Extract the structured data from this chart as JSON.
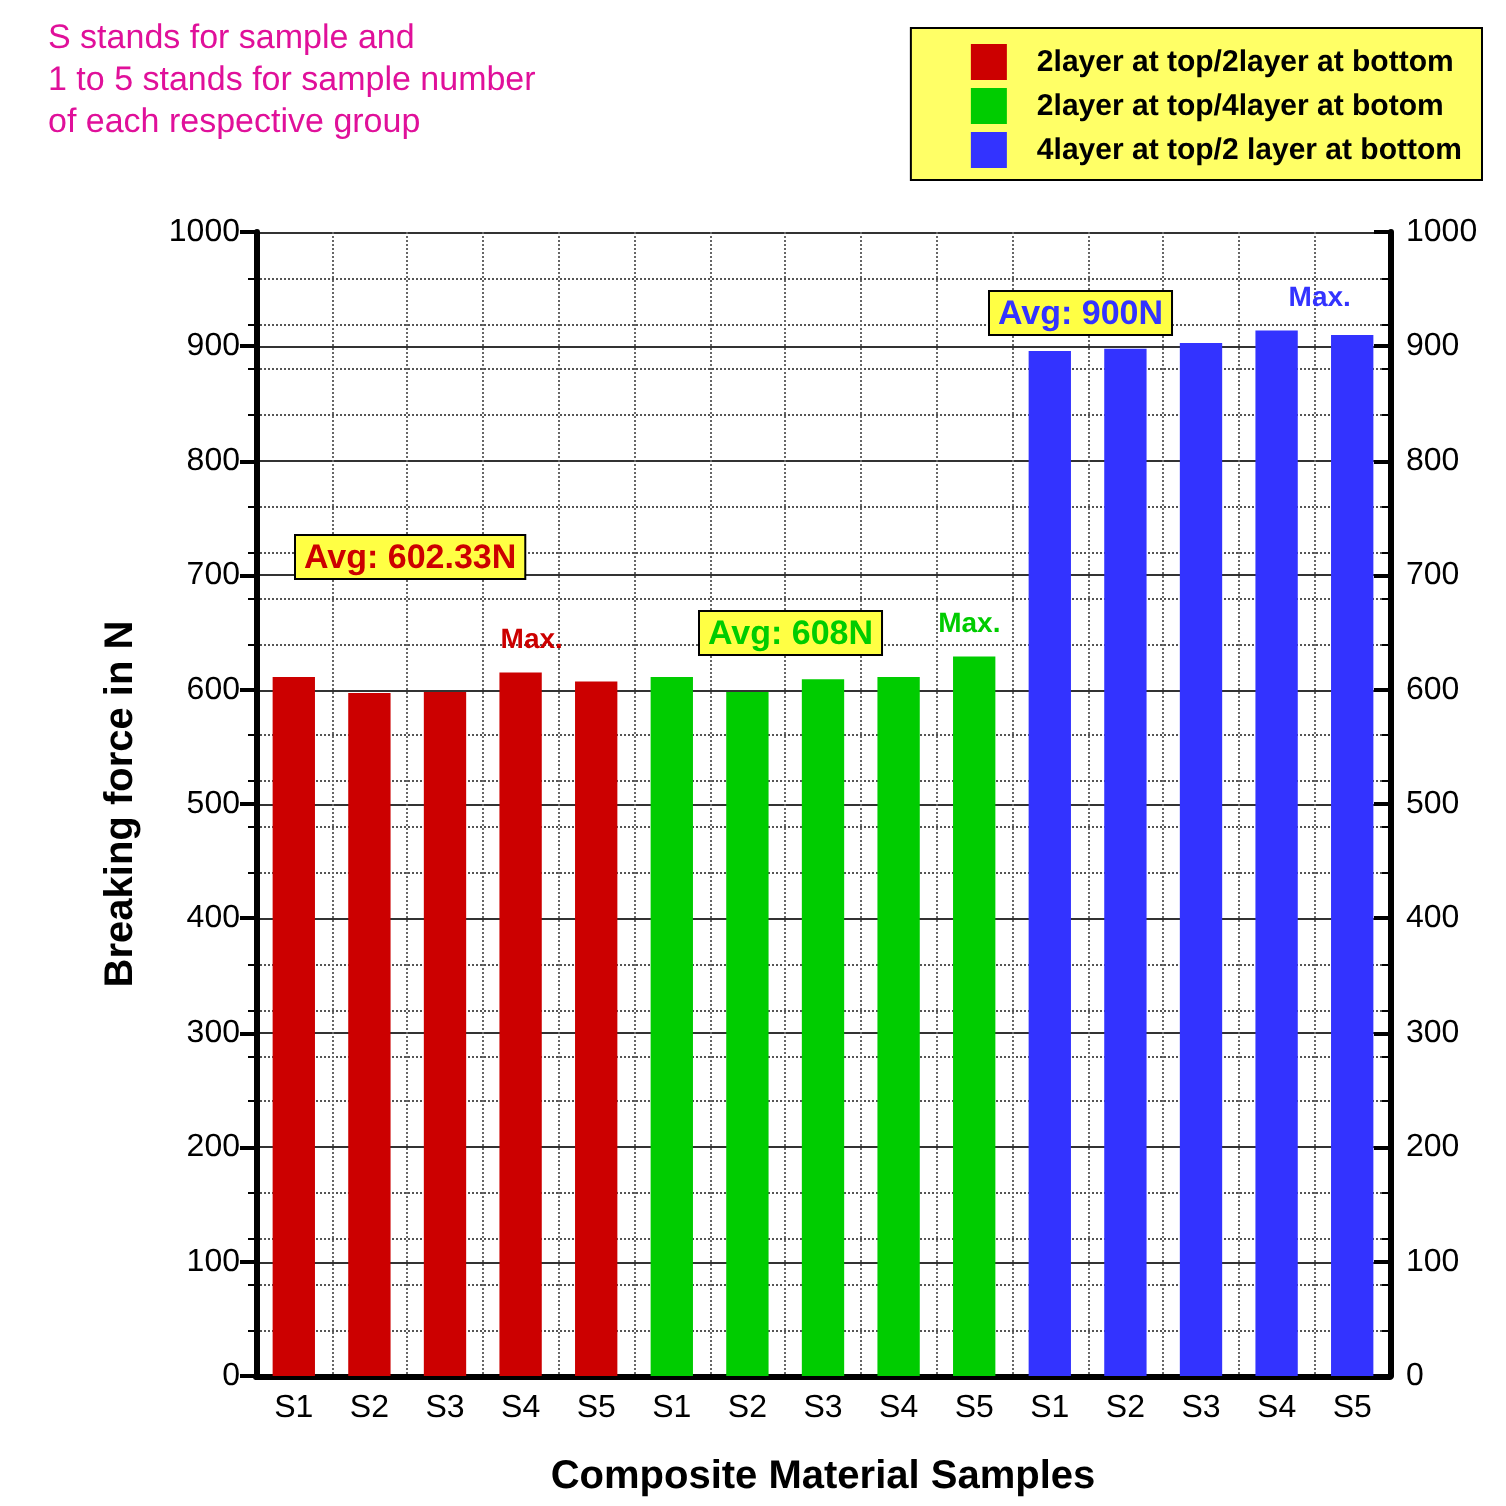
{
  "chart_data": {
    "type": "bar",
    "xlabel": "Composite Material Samples",
    "ylabel": "Breaking force in N",
    "categories": [
      "S1",
      "S2",
      "S3",
      "S4",
      "S5",
      "S1",
      "S2",
      "S3",
      "S4",
      "S5",
      "S1",
      "S2",
      "S3",
      "S4",
      "S5"
    ],
    "series": [
      {
        "name": "2layer at top/2layer at bottom",
        "color": "#cc0000",
        "values": [
          611,
          597,
          598,
          615,
          607,
          null,
          null,
          null,
          null,
          null,
          null,
          null,
          null,
          null,
          null
        ]
      },
      {
        "name": "2layer at top/4layer at botom",
        "color": "#00cc00",
        "values": [
          null,
          null,
          null,
          null,
          null,
          611,
          598,
          609,
          611,
          629,
          null,
          null,
          null,
          null,
          null
        ]
      },
      {
        "name": "4layer at top/2 layer at bottom",
        "color": "#3333ff",
        "values": [
          null,
          null,
          null,
          null,
          null,
          null,
          null,
          null,
          null,
          null,
          896,
          898,
          903,
          914,
          910
        ]
      }
    ],
    "ylim": [
      0,
      1000
    ],
    "yticks": [
      0,
      100,
      200,
      300,
      400,
      500,
      600,
      700,
      800,
      900,
      1000
    ],
    "y2lim": [
      0,
      1000
    ],
    "y2ticks": [
      0,
      100,
      200,
      300,
      400,
      500,
      600,
      700,
      800,
      900,
      1000
    ],
    "annotations": [
      "Avg: 602.33N",
      "Max.",
      "Avg: 608N",
      "Max.",
      "Avg: 900N",
      "Max.",
      "S stands for sample and\n1 to 5 stands for sample number\nof each respective group"
    ],
    "grid": true,
    "legend": "top right"
  }
}
